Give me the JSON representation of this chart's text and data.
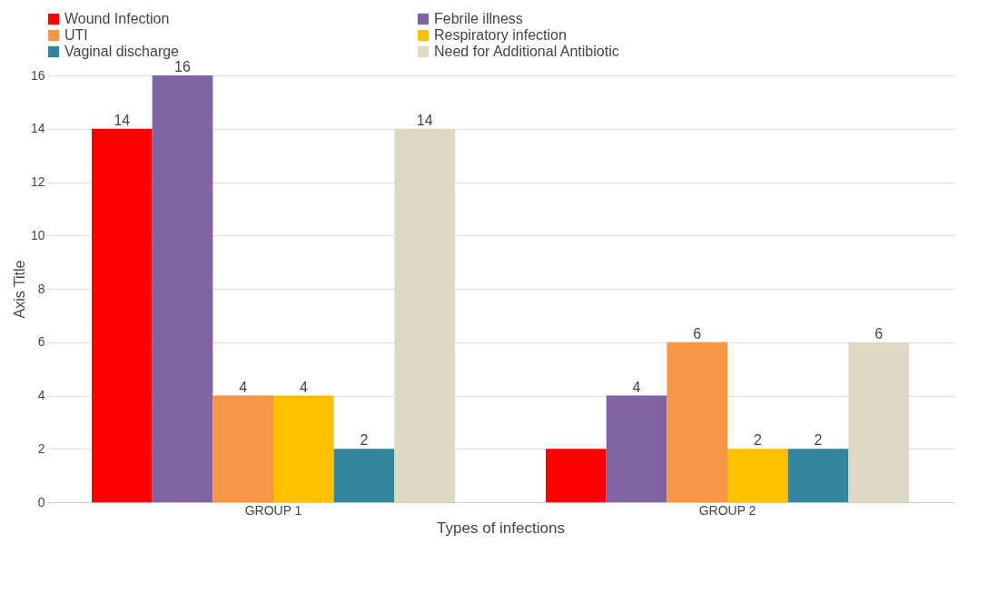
{
  "chart_data": {
    "type": "bar",
    "xlabel": "Types of infections",
    "ylabel": "Axis Title",
    "categories": [
      "GROUP 1",
      "GROUP 2"
    ],
    "series": [
      {
        "name": "Wound Infection",
        "color": "#ff0000",
        "values": [
          14,
          2
        ],
        "value_labels": [
          "14",
          null
        ]
      },
      {
        "name": "Febrile illness",
        "color": "#8064a2",
        "values": [
          16,
          4
        ],
        "value_labels": [
          "16",
          "4"
        ]
      },
      {
        "name": "UTI",
        "color": "#f79646",
        "values": [
          4,
          6
        ],
        "value_labels": [
          "4",
          "6"
        ]
      },
      {
        "name": "Respiratory infection",
        "color": "#ffc000",
        "values": [
          4,
          2
        ],
        "value_labels": [
          "4",
          "2"
        ]
      },
      {
        "name": "Vaginal discharge",
        "color": "#31859c",
        "values": [
          2,
          2
        ],
        "value_labels": [
          "2",
          "2"
        ]
      },
      {
        "name": "Need for Additional Antibiotic",
        "color": "#ddd9c3",
        "values": [
          14,
          6
        ],
        "value_labels": [
          "14",
          "6"
        ]
      }
    ],
    "ylim": [
      0,
      16
    ],
    "yticks": [
      0,
      2,
      4,
      6,
      8,
      10,
      12,
      14,
      16
    ],
    "grid": "y",
    "legend": "top"
  }
}
